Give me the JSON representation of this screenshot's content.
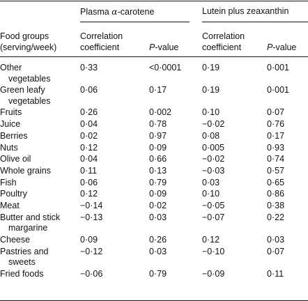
{
  "table": {
    "stub_header": [
      "Food groups",
      "(serving/week)"
    ],
    "groups": [
      {
        "label_prefix": "Plasma ",
        "label_greek": "α",
        "label_suffix": "-carotene"
      },
      {
        "label": "Lutein plus zeaxanthin"
      }
    ],
    "subheaders": {
      "corr": [
        "Correlation",
        "coefficient"
      ],
      "p_italic": "P",
      "p_rest": "-value"
    },
    "rows": [
      {
        "label": [
          "Other",
          "vegetables"
        ],
        "a_r": "0·33",
        "a_p": "<0·0001",
        "l_r": "0·19",
        "l_p": "0·001"
      },
      {
        "label": [
          "Green leafy",
          "vegetables"
        ],
        "a_r": "0·06",
        "a_p": "0·17",
        "l_r": "0·19",
        "l_p": "0·001"
      },
      {
        "label": [
          "Fruits"
        ],
        "a_r": "0·26",
        "a_p": "0·002",
        "l_r": "0·10",
        "l_p": "0·07"
      },
      {
        "label": [
          "Juice"
        ],
        "a_r": "0·04",
        "a_p": "0·78",
        "l_r": "−0·02",
        "l_p": "0·76"
      },
      {
        "label": [
          "Berries"
        ],
        "a_r": "0·02",
        "a_p": "0·97",
        "l_r": "0·08",
        "l_p": "0·17"
      },
      {
        "label": [
          "Nuts"
        ],
        "a_r": "0·12",
        "a_p": "0·09",
        "l_r": "0·005",
        "l_p": "0·93"
      },
      {
        "label": [
          "Olive oil"
        ],
        "a_r": "0·04",
        "a_p": "0·66",
        "l_r": "−0·02",
        "l_p": "0·74"
      },
      {
        "label": [
          "Whole grains"
        ],
        "a_r": "0·11",
        "a_p": "0·13",
        "l_r": "−0·03",
        "l_p": "0·57"
      },
      {
        "label": [
          "Fish"
        ],
        "a_r": "0·06",
        "a_p": "0·79",
        "l_r": "0·03",
        "l_p": "0·65"
      },
      {
        "label": [
          "Poultry"
        ],
        "a_r": "0·12",
        "a_p": "0·09",
        "l_r": "0·10",
        "l_p": "0·86"
      },
      {
        "label": [
          "Meat"
        ],
        "a_r": "−0·14",
        "a_p": "0·02",
        "l_r": "−0·05",
        "l_p": "0·38"
      },
      {
        "label": [
          "Butter and stick",
          "margarine"
        ],
        "a_r": "−0·13",
        "a_p": "0·03",
        "l_r": "−0·07",
        "l_p": "0·22"
      },
      {
        "label": [
          "Cheese"
        ],
        "a_r": "0·09",
        "a_p": "0·26",
        "l_r": "0·12",
        "l_p": "0·03"
      },
      {
        "label": [
          "Pastries and",
          "sweets"
        ],
        "a_r": "−0·12",
        "a_p": "0·03",
        "l_r": "−0·10",
        "l_p": "0·07"
      },
      {
        "label": [
          "Fried foods"
        ],
        "a_r": "−0·06",
        "a_p": "0·79",
        "l_r": "−0·09",
        "l_p": "0·11"
      }
    ]
  }
}
